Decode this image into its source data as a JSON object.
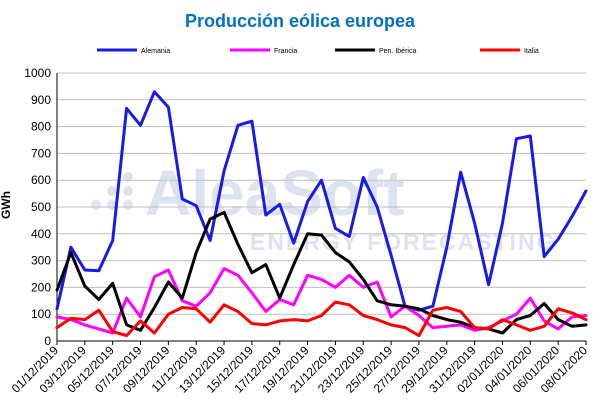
{
  "chart_data": {
    "type": "line",
    "title": "Producción eólica europea",
    "title_color": "#0070c0",
    "xlabel": "",
    "ylabel": "GWh",
    "ylim": [
      0,
      1000
    ],
    "yticks": [
      0,
      100,
      200,
      300,
      400,
      500,
      600,
      700,
      800,
      900,
      1000
    ],
    "grid": true,
    "legend_position": "top",
    "watermark": {
      "line1": "AleaSoft",
      "line2": "ENERGY FORECASTING",
      "color": "#dce3ef"
    },
    "x": [
      "01/12/2019",
      "02/12/2019",
      "03/12/2019",
      "04/12/2019",
      "05/12/2019",
      "06/12/2019",
      "07/12/2019",
      "08/12/2019",
      "09/12/2019",
      "10/12/2019",
      "11/12/2019",
      "12/12/2019",
      "13/12/2019",
      "14/12/2019",
      "15/12/2019",
      "16/12/2019",
      "17/12/2019",
      "18/12/2019",
      "19/12/2019",
      "20/12/2019",
      "21/12/2019",
      "22/12/2019",
      "23/12/2019",
      "24/12/2019",
      "25/12/2019",
      "26/12/2019",
      "27/12/2019",
      "28/12/2019",
      "29/12/2019",
      "30/12/2019",
      "31/12/2019",
      "01/01/2020",
      "02/01/2020",
      "03/01/2020",
      "04/01/2020",
      "05/01/2020",
      "06/01/2020",
      "07/01/2020",
      "08/01/2020"
    ],
    "x_tick_labels": [
      "01/12/2019",
      "03/12/2019",
      "05/12/2019",
      "07/12/2019",
      "09/12/2019",
      "11/12/2019",
      "13/12/2019",
      "15/12/2019",
      "17/12/2019",
      "19/12/2019",
      "21/12/2019",
      "23/12/2019",
      "25/12/2019",
      "27/12/2019",
      "29/12/2019",
      "31/12/2019",
      "02/01/2020",
      "04/01/2020",
      "06/01/2020",
      "08/01/2020"
    ],
    "series": [
      {
        "name": "Alemania",
        "color": "#1a1ae6",
        "values": [
          120,
          350,
          265,
          262,
          375,
          868,
          805,
          930,
          872,
          530,
          505,
          375,
          635,
          805,
          820,
          470,
          510,
          365,
          520,
          600,
          420,
          390,
          610,
          500,
          320,
          130,
          115,
          130,
          350,
          630,
          440,
          210,
          440,
          755,
          765,
          315,
          380,
          465,
          560
        ]
      },
      {
        "name": "Francia",
        "color": "#ff00ff",
        "values": [
          90,
          80,
          60,
          45,
          30,
          160,
          90,
          240,
          265,
          150,
          130,
          180,
          270,
          245,
          180,
          110,
          155,
          135,
          245,
          230,
          200,
          245,
          200,
          220,
          90,
          130,
          95,
          50,
          55,
          60,
          40,
          50,
          75,
          100,
          160,
          75,
          45,
          90,
          95
        ]
      },
      {
        "name": "Pen. Ibérica",
        "color": "#000000",
        "values": [
          190,
          330,
          205,
          155,
          215,
          60,
          40,
          125,
          220,
          160,
          330,
          455,
          480,
          360,
          255,
          285,
          160,
          285,
          400,
          395,
          330,
          295,
          230,
          150,
          135,
          130,
          120,
          95,
          80,
          70,
          50,
          45,
          30,
          80,
          95,
          140,
          80,
          55,
          60
        ]
      },
      {
        "name": "Italia",
        "color": "#ff0000",
        "values": [
          50,
          85,
          80,
          115,
          35,
          20,
          75,
          30,
          100,
          125,
          120,
          70,
          135,
          110,
          65,
          60,
          75,
          80,
          75,
          95,
          145,
          135,
          95,
          80,
          60,
          50,
          20,
          115,
          125,
          110,
          50,
          45,
          80,
          60,
          40,
          55,
          120,
          105,
          80
        ]
      }
    ]
  }
}
